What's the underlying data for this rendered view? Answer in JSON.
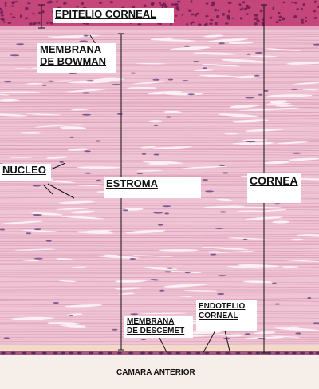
{
  "labels": {
    "epitelio": "EPITELIO CORNEAL",
    "bowman_1": "MEMBRANA",
    "bowman_2": "DE BOWMAN",
    "nucleo": "NUCLEO",
    "estroma": "ESTROMA",
    "cornea": "CORNEA",
    "descemet_1": "MEMBRANA",
    "descemet_2": "DE DESCEMET",
    "endotelio_1": "ENDOTELIO",
    "endotelio_2": "CORNEAL",
    "camara": "CAMARA ANTERIOR"
  },
  "colors": {
    "epithelium": "#c4467a",
    "epithelium_nuclei": "#6a1d52",
    "stroma": "#efc4d4",
    "stroma_fiber": "#d794ae",
    "cleft": "#fbf0f4",
    "keratocyte_nucleus": "#5c3a7a",
    "descemet": "#f1dbc8",
    "endothelium": "#a4577f",
    "anterior_chamber": "#f6eee8",
    "pointer_line": "#111111"
  }
}
